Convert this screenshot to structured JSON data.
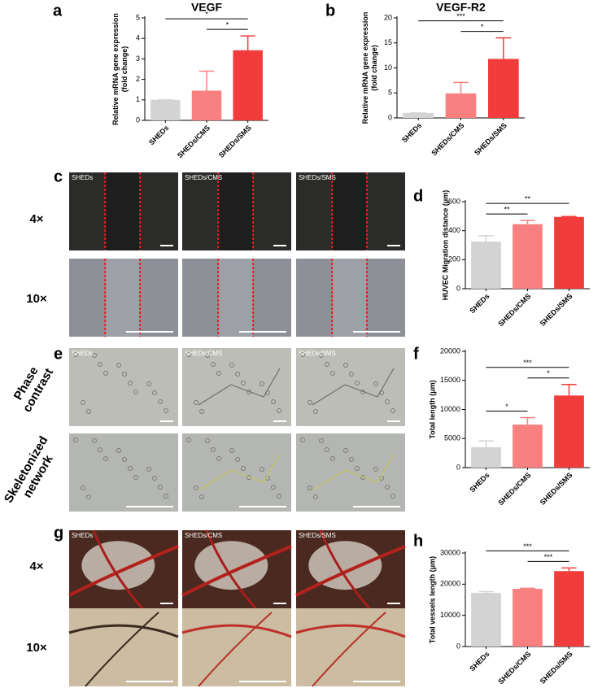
{
  "chart_data": [
    {
      "type": "bar",
      "panel": "a",
      "title": "VEGF",
      "ylabel": [
        "Relative mRNA gene expression",
        "(fold change)"
      ],
      "categories": [
        "SHEDs",
        "SHEDs/CMS",
        "SHEDs/SMS"
      ],
      "values": [
        1,
        1.45,
        3.42
      ],
      "errors": [
        0,
        0.95,
        0.7
      ],
      "colors": [
        "#d3d3d3",
        "#f98080",
        "#f23b3b"
      ],
      "ylim": [
        0,
        5
      ],
      "yticks": [
        0,
        1,
        2,
        3,
        4,
        5
      ],
      "significance": [
        {
          "label": "*",
          "between": [
            "SHEDs",
            "SHEDs/SMS"
          ]
        },
        {
          "label": "*",
          "between": [
            "SHEDs/CMS",
            "SHEDs/SMS"
          ]
        }
      ]
    },
    {
      "type": "bar",
      "panel": "b",
      "title": "VEGF-R2",
      "ylabel": [
        "Relative mRNA gene expression",
        "(fold change)"
      ],
      "categories": [
        "SHEDs",
        "SHEDs/CMS",
        "SHEDs/SMS"
      ],
      "values": [
        1,
        4.9,
        11.8
      ],
      "errors": [
        0,
        2.2,
        4.2
      ],
      "colors": [
        "#d3d3d3",
        "#f98080",
        "#f23b3b"
      ],
      "ylim": [
        0,
        20
      ],
      "yticks": [
        0,
        5,
        10,
        15,
        20
      ],
      "significance": [
        {
          "label": "***",
          "between": [
            "SHEDs",
            "SHEDs/SMS"
          ]
        },
        {
          "label": "*",
          "between": [
            "SHEDs/CMS",
            "SHEDs/SMS"
          ]
        }
      ]
    },
    {
      "type": "bar",
      "panel": "d",
      "ylabel": [
        "HUVEC Migration distance (μm)"
      ],
      "categories": [
        "SHEDs",
        "SHEDs/CMS",
        "SHEDs/SMS"
      ],
      "values": [
        325,
        445,
        495
      ],
      "errors": [
        40,
        25,
        3
      ],
      "colors": [
        "#d3d3d3",
        "#f98080",
        "#f23b3b"
      ],
      "ylim": [
        0,
        600
      ],
      "yticks": [
        0,
        200,
        400,
        600
      ],
      "significance": [
        {
          "label": "**",
          "between": [
            "SHEDs",
            "SHEDs/SMS"
          ]
        },
        {
          "label": "**",
          "between": [
            "SHEDs",
            "SHEDs/CMS"
          ]
        }
      ]
    },
    {
      "type": "bar",
      "panel": "f",
      "ylabel": [
        "Total length (μm)"
      ],
      "categories": [
        "SHEDs",
        "SHEDs/CMS",
        "SHEDs/SMS"
      ],
      "values": [
        3500,
        7400,
        12400
      ],
      "errors": [
        1100,
        1200,
        1900
      ],
      "colors": [
        "#d3d3d3",
        "#f98080",
        "#f23b3b"
      ],
      "ylim": [
        0,
        20000
      ],
      "yticks": [
        0,
        5000,
        10000,
        15000,
        20000
      ],
      "significance": [
        {
          "label": "***",
          "between": [
            "SHEDs",
            "SHEDs/SMS"
          ]
        },
        {
          "label": "*",
          "between": [
            "SHEDs/CMS",
            "SHEDs/SMS"
          ]
        },
        {
          "label": "*",
          "between": [
            "SHEDs",
            "SHEDs/CMS"
          ]
        }
      ]
    },
    {
      "type": "bar",
      "panel": "h",
      "ylabel": [
        "Total vessels length (μm)"
      ],
      "categories": [
        "SHEDs",
        "SHEDs/CMS",
        "SHEDs/SMS"
      ],
      "values": [
        17200,
        18500,
        24200
      ],
      "errors": [
        400,
        200,
        1000
      ],
      "colors": [
        "#d3d3d3",
        "#f98080",
        "#f23b3b"
      ],
      "ylim": [
        0,
        30000
      ],
      "yticks": [
        0,
        10000,
        20000,
        30000
      ],
      "significance": [
        {
          "label": "***",
          "between": [
            "SHEDs",
            "SHEDs/SMS"
          ]
        },
        {
          "label": "***",
          "between": [
            "SHEDs/CMS",
            "SHEDs/SMS"
          ]
        }
      ]
    }
  ],
  "image_panels": [
    {
      "letter": "c",
      "rows": [
        [
          "4×"
        ],
        [
          "10×"
        ]
      ],
      "columns": [
        "SHEDs",
        "SHEDs/CMS",
        "SHEDs/SMS"
      ]
    },
    {
      "letter": "e",
      "rows": [
        [
          "Phase",
          "contrast"
        ],
        [
          "Skeletonized",
          "network"
        ]
      ],
      "columns": [
        "SHEDs",
        "SHEDs/CMS",
        "SHEDs/SMS"
      ]
    },
    {
      "letter": "g",
      "rows": [
        [
          "4×"
        ],
        [
          "10×"
        ]
      ],
      "columns": [
        "SHEDs",
        "SHEDs/CMS",
        "SHEDs/SMS"
      ]
    }
  ]
}
